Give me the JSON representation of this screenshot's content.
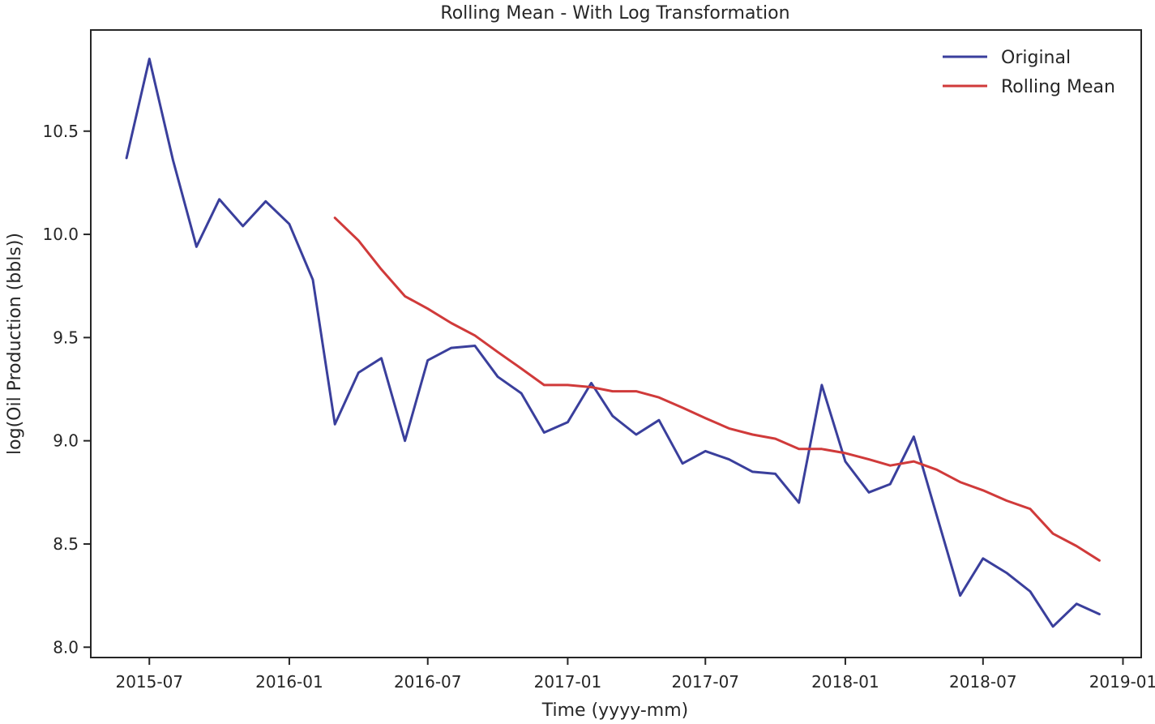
{
  "chart_data": {
    "type": "line",
    "title": "Rolling Mean - With Log Transformation",
    "xlabel": "Time (yyyy-mm)",
    "ylabel": "log(Oil Production (bbls))",
    "x_tick_labels": [
      "2015-07",
      "2016-01",
      "2016-07",
      "2017-01",
      "2017-07",
      "2018-01",
      "2018-07",
      "2019-01"
    ],
    "y_ticks": [
      8.0,
      8.5,
      9.0,
      9.5,
      10.0,
      10.5
    ],
    "y_tick_labels": [
      "8.0",
      "8.5",
      "9.0",
      "9.5",
      "10.0",
      "10.5"
    ],
    "ylim": [
      7.95,
      10.99
    ],
    "xlim": [
      "2015-04-15",
      "2019-01-25"
    ],
    "grid": false,
    "legend_position": "top-right",
    "x": [
      "2015-06",
      "2015-07",
      "2015-08",
      "2015-09",
      "2015-10",
      "2015-11",
      "2015-12",
      "2016-01",
      "2016-02",
      "2016-03",
      "2016-04",
      "2016-05",
      "2016-06",
      "2016-07",
      "2016-08",
      "2016-09",
      "2016-10",
      "2016-11",
      "2016-12",
      "2017-01",
      "2017-02",
      "2017-03",
      "2017-04",
      "2017-05",
      "2017-06",
      "2017-07",
      "2017-08",
      "2017-09",
      "2017-10",
      "2017-11",
      "2017-12",
      "2018-01",
      "2018-02",
      "2018-03",
      "2018-04",
      "2018-05",
      "2018-06",
      "2018-07",
      "2018-08",
      "2018-09",
      "2018-10",
      "2018-11",
      "2018-12"
    ],
    "series": [
      {
        "name": "Original",
        "color": "#3a3f9c",
        "values": [
          10.37,
          10.85,
          10.36,
          9.94,
          10.17,
          10.04,
          10.16,
          10.05,
          9.78,
          9.08,
          9.33,
          9.4,
          9.0,
          9.39,
          9.45,
          9.46,
          9.31,
          9.23,
          9.04,
          9.09,
          9.28,
          9.12,
          9.03,
          9.1,
          8.89,
          8.95,
          8.91,
          8.85,
          8.84,
          8.7,
          9.27,
          8.9,
          8.75,
          8.79,
          9.02,
          8.64,
          8.25,
          8.43,
          8.36,
          8.27,
          8.1,
          8.21,
          8.16
        ]
      },
      {
        "name": "Rolling Mean",
        "color": "#d03a3a",
        "values": [
          null,
          null,
          null,
          null,
          null,
          null,
          null,
          null,
          null,
          10.08,
          9.97,
          9.83,
          9.7,
          9.64,
          9.57,
          9.51,
          9.43,
          9.35,
          9.27,
          9.27,
          9.26,
          9.24,
          9.24,
          9.21,
          9.16,
          9.11,
          9.06,
          9.03,
          9.01,
          8.96,
          8.96,
          8.94,
          8.91,
          8.88,
          8.9,
          8.86,
          8.8,
          8.76,
          8.71,
          8.67,
          8.55,
          8.49,
          8.42
        ]
      }
    ]
  }
}
